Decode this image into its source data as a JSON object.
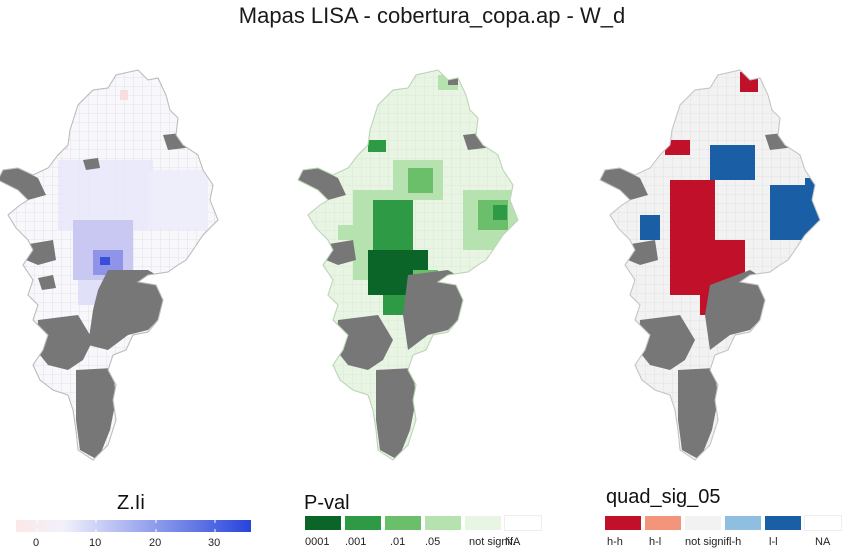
{
  "title": "Mapas LISA - cobertura_copa.ap - W_d",
  "maps": [
    {
      "legend_title": "Z.Ii",
      "gradient_ticks": [
        "0",
        "10",
        "20",
        "30"
      ],
      "colors": {
        "low": "#fbe6e6",
        "mid": "#ecebfb",
        "high": "#2b4be0",
        "na": "#7a7a7a"
      }
    },
    {
      "legend_title": "P-val",
      "legend_items": [
        {
          "label": "0001",
          "color": "#0b6428"
        },
        {
          "label": ".001",
          "color": "#2e9a45"
        },
        {
          "label": ".01",
          "color": "#6bbf6b"
        },
        {
          "label": ".05",
          "color": "#b5e2ae"
        },
        {
          "label": "not signif.",
          "color": "#e8f5e3"
        },
        {
          "label": "NA",
          "color": "#ffffff"
        }
      ]
    },
    {
      "legend_title": "quad_sig_05",
      "legend_items": [
        {
          "label": "h-h",
          "color": "#c0102a"
        },
        {
          "label": "h-l",
          "color": "#f2957a"
        },
        {
          "label": "not signif.",
          "color": "#f2f2f2"
        },
        {
          "label": "l-h",
          "color": "#8fbfe0"
        },
        {
          "label": "l-l",
          "color": "#1a5fa6"
        },
        {
          "label": "NA",
          "color": "#ffffff"
        }
      ]
    }
  ]
}
